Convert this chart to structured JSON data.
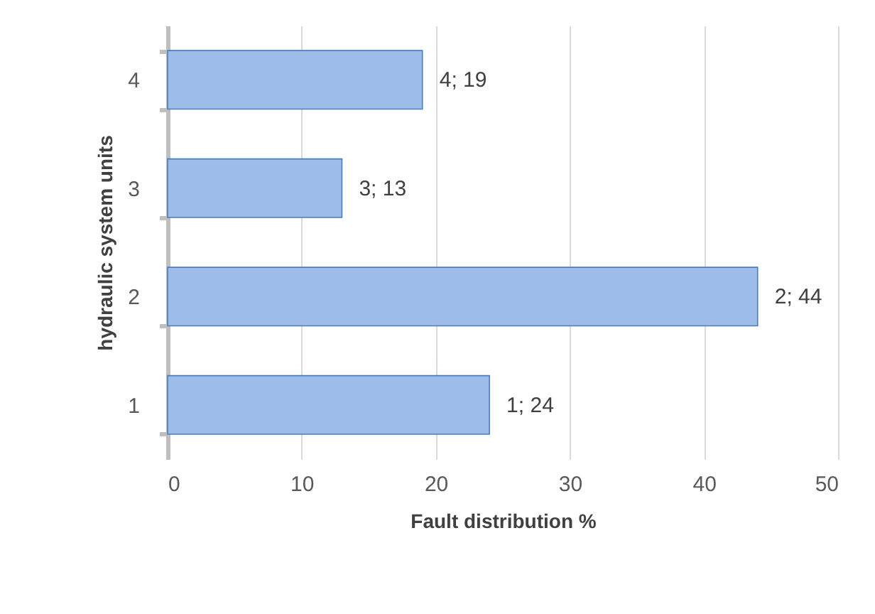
{
  "chart_data": {
    "type": "bar",
    "orientation": "horizontal",
    "xlabel": "Fault distribution %",
    "ylabel": "hydraulic system units",
    "categories": [
      "4",
      "3",
      "2",
      "1"
    ],
    "values": [
      19,
      13,
      44,
      24
    ],
    "value_labels": [
      "4; 19",
      "3; 13",
      "2; 44",
      "1; 24"
    ],
    "color": "#9dbde8",
    "xlim": [
      0,
      50
    ],
    "xticks": [
      0,
      10,
      20,
      30,
      40,
      50
    ],
    "grid": "x"
  }
}
